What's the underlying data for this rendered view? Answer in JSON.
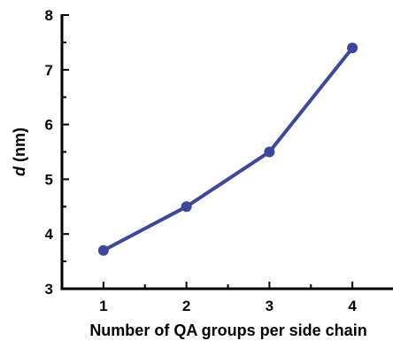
{
  "chart_data": {
    "type": "line",
    "xlabel": "Number of QA groups per side chain",
    "ylabel_italic": "d",
    "ylabel_rest": " (nm)",
    "xlim": [
      0.5,
      4.5
    ],
    "ylim": [
      3,
      8
    ],
    "xticks": [
      1,
      2,
      3,
      4
    ],
    "yticks": [
      3,
      4,
      5,
      6,
      7,
      8
    ],
    "grid": false,
    "series": [
      {
        "x": [
          1,
          2,
          3,
          4
        ],
        "values": [
          3.7,
          4.5,
          5.5,
          7.4
        ],
        "color": "#3c47a0"
      }
    ]
  }
}
